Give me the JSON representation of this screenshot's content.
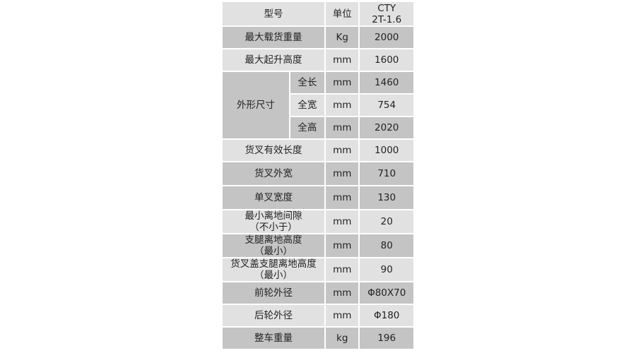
{
  "header": {
    "model_label": "型号",
    "unit_label": "单位",
    "model_value_line1": "CTY",
    "model_value_line2": "2T-1.6"
  },
  "rows": [
    {
      "name": "最大载货重量",
      "unit": "Kg",
      "value": "2000"
    },
    {
      "name": "最大起升高度",
      "unit": "mm",
      "value": "1600"
    },
    {
      "name": "货叉有效长度",
      "unit": "mm",
      "value": "1000"
    },
    {
      "name": "货叉外宽",
      "unit": "mm",
      "value": "710"
    },
    {
      "name": "单叉宽度",
      "unit": "mm",
      "value": "130"
    },
    {
      "name": "最小离地间隙",
      "name_line2": "（不小于）",
      "unit": "mm",
      "value": "20"
    },
    {
      "name": "支腿离地高度",
      "name_line2": "（最小）",
      "unit": "mm",
      "value": "80"
    },
    {
      "name": "货叉盖支腿离地高度",
      "name_line2": "（最小）",
      "unit": "mm",
      "value": "90"
    },
    {
      "name": "前轮外径",
      "unit": "mm",
      "value": "Φ80X70"
    },
    {
      "name": "后轮外径",
      "unit": "mm",
      "value": "Φ180"
    },
    {
      "name": "整车重量",
      "unit": "kg",
      "value": "196"
    }
  ],
  "dimensions": {
    "group_label": "外形尺寸",
    "items": [
      {
        "name": "全长",
        "unit": "mm",
        "value": "1460"
      },
      {
        "name": "全宽",
        "unit": "mm",
        "value": "754"
      },
      {
        "name": "全高",
        "unit": "mm",
        "value": "2020"
      }
    ]
  },
  "colors": {
    "dark_row": "#c4c4c4",
    "light_row": "#e1e1e1",
    "border": "#ffffff"
  }
}
